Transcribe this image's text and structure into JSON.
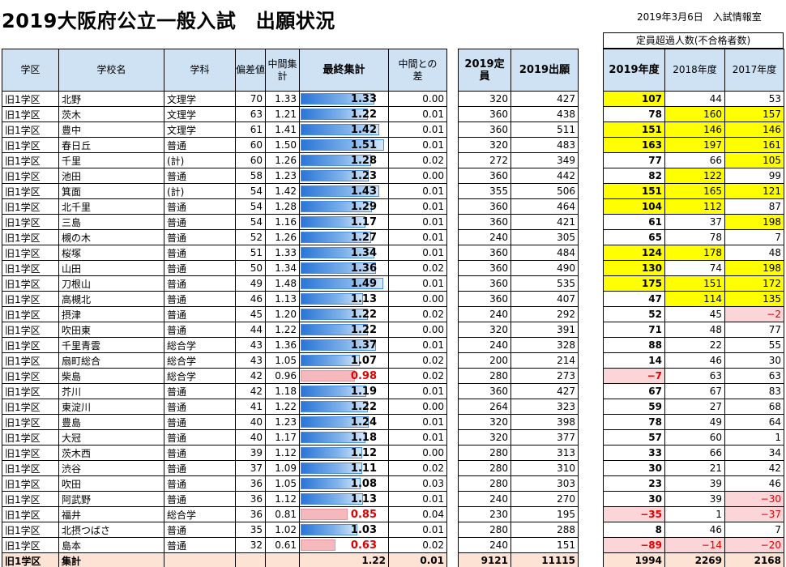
{
  "title": "2019大阪府公立一般入試　出願状況",
  "info": "2019年3月6日　入試情報室",
  "excess_header": "定員超過人数(不合格者数)",
  "headers": {
    "district": "学区",
    "school": "学校名",
    "course": "学科",
    "hensa": "偏差値",
    "interim": "中間集計",
    "final": "最終集計",
    "diff": "中間との差",
    "capacity": "2019定員",
    "applicants": "2019出願",
    "y2019": "2019年度",
    "y2018": "2018年度",
    "y2017": "2017年度"
  },
  "rows": [
    {
      "district": "旧1学区",
      "school": "北野",
      "course": "文理学",
      "hensa": "70",
      "interim": "1.33",
      "final": "1.33",
      "final_value": 1.33,
      "diff": "0.00",
      "capacity": "320",
      "applicants": "427",
      "y2019": "107",
      "y2018": "44",
      "y2017": "53"
    },
    {
      "district": "旧1学区",
      "school": "茨木",
      "course": "文理学",
      "hensa": "63",
      "interim": "1.21",
      "final": "1.22",
      "final_value": 1.22,
      "diff": "0.01",
      "capacity": "360",
      "applicants": "438",
      "y2019": "78",
      "y2018": "160",
      "y2017": "157"
    },
    {
      "district": "旧1学区",
      "school": "豊中",
      "course": "文理学",
      "hensa": "61",
      "interim": "1.41",
      "final": "1.42",
      "final_value": 1.42,
      "diff": "0.01",
      "capacity": "360",
      "applicants": "511",
      "y2019": "151",
      "y2018": "146",
      "y2017": "146"
    },
    {
      "district": "旧1学区",
      "school": "春日丘",
      "course": "普通",
      "hensa": "60",
      "interim": "1.50",
      "final": "1.51",
      "final_value": 1.51,
      "diff": "0.01",
      "capacity": "320",
      "applicants": "483",
      "y2019": "163",
      "y2018": "197",
      "y2017": "161"
    },
    {
      "district": "旧1学区",
      "school": "千里",
      "course": "(計)",
      "hensa": "60",
      "interim": "1.26",
      "final": "1.28",
      "final_value": 1.28,
      "diff": "0.02",
      "capacity": "272",
      "applicants": "349",
      "y2019": "77",
      "y2018": "66",
      "y2017": "105"
    },
    {
      "district": "旧1学区",
      "school": "池田",
      "course": "普通",
      "hensa": "58",
      "interim": "1.23",
      "final": "1.23",
      "final_value": 1.23,
      "diff": "0.00",
      "capacity": "360",
      "applicants": "442",
      "y2019": "82",
      "y2018": "122",
      "y2017": "99"
    },
    {
      "district": "旧1学区",
      "school": "箕面",
      "course": "(計)",
      "hensa": "54",
      "interim": "1.42",
      "final": "1.43",
      "final_value": 1.43,
      "diff": "0.01",
      "capacity": "355",
      "applicants": "506",
      "y2019": "151",
      "y2018": "165",
      "y2017": "121"
    },
    {
      "district": "旧1学区",
      "school": "北千里",
      "course": "普通",
      "hensa": "54",
      "interim": "1.28",
      "final": "1.29",
      "final_value": 1.29,
      "diff": "0.01",
      "capacity": "360",
      "applicants": "464",
      "y2019": "104",
      "y2018": "112",
      "y2017": "87"
    },
    {
      "district": "旧1学区",
      "school": "三島",
      "course": "普通",
      "hensa": "54",
      "interim": "1.16",
      "final": "1.17",
      "final_value": 1.17,
      "diff": "0.01",
      "capacity": "360",
      "applicants": "421",
      "y2019": "61",
      "y2018": "37",
      "y2017": "198"
    },
    {
      "district": "旧1学区",
      "school": "槻の木",
      "course": "普通",
      "hensa": "52",
      "interim": "1.26",
      "final": "1.27",
      "final_value": 1.27,
      "diff": "0.01",
      "capacity": "240",
      "applicants": "305",
      "y2019": "65",
      "y2018": "78",
      "y2017": "7"
    },
    {
      "district": "旧1学区",
      "school": "桜塚",
      "course": "普通",
      "hensa": "51",
      "interim": "1.33",
      "final": "1.34",
      "final_value": 1.34,
      "diff": "0.01",
      "capacity": "360",
      "applicants": "484",
      "y2019": "124",
      "y2018": "178",
      "y2017": "48"
    },
    {
      "district": "旧1学区",
      "school": "山田",
      "course": "普通",
      "hensa": "50",
      "interim": "1.34",
      "final": "1.36",
      "final_value": 1.36,
      "diff": "0.02",
      "capacity": "360",
      "applicants": "490",
      "y2019": "130",
      "y2018": "74",
      "y2017": "198"
    },
    {
      "district": "旧1学区",
      "school": "刀根山",
      "course": "普通",
      "hensa": "49",
      "interim": "1.48",
      "final": "1.49",
      "final_value": 1.49,
      "diff": "0.01",
      "capacity": "360",
      "applicants": "535",
      "y2019": "175",
      "y2018": "151",
      "y2017": "172"
    },
    {
      "district": "旧1学区",
      "school": "高槻北",
      "course": "普通",
      "hensa": "46",
      "interim": "1.13",
      "final": "1.13",
      "final_value": 1.13,
      "diff": "0.00",
      "capacity": "360",
      "applicants": "407",
      "y2019": "47",
      "y2018": "114",
      "y2017": "135"
    },
    {
      "district": "旧1学区",
      "school": "摂津",
      "course": "普通",
      "hensa": "45",
      "interim": "1.20",
      "final": "1.22",
      "final_value": 1.22,
      "diff": "0.02",
      "capacity": "240",
      "applicants": "292",
      "y2019": "52",
      "y2018": "45",
      "y2017": "−2"
    },
    {
      "district": "旧1学区",
      "school": "吹田東",
      "course": "普通",
      "hensa": "44",
      "interim": "1.22",
      "final": "1.22",
      "final_value": 1.22,
      "diff": "0.00",
      "capacity": "320",
      "applicants": "391",
      "y2019": "71",
      "y2018": "48",
      "y2017": "77"
    },
    {
      "district": "旧1学区",
      "school": "千里青雲",
      "course": "総合学",
      "hensa": "43",
      "interim": "1.36",
      "final": "1.37",
      "final_value": 1.37,
      "diff": "0.01",
      "capacity": "240",
      "applicants": "328",
      "y2019": "88",
      "y2018": "22",
      "y2017": "55"
    },
    {
      "district": "旧1学区",
      "school": "扇町総合",
      "course": "総合学",
      "hensa": "43",
      "interim": "1.05",
      "final": "1.07",
      "final_value": 1.07,
      "diff": "0.02",
      "capacity": "200",
      "applicants": "214",
      "y2019": "14",
      "y2018": "46",
      "y2017": "30"
    },
    {
      "district": "旧1学区",
      "school": "柴島",
      "course": "総合学",
      "hensa": "42",
      "interim": "0.96",
      "final": "0.98",
      "final_value": 0.98,
      "diff": "0.02",
      "capacity": "280",
      "applicants": "273",
      "y2019": "−7",
      "y2018": "63",
      "y2017": "63"
    },
    {
      "district": "旧1学区",
      "school": "芥川",
      "course": "普通",
      "hensa": "42",
      "interim": "1.18",
      "final": "1.19",
      "final_value": 1.19,
      "diff": "0.01",
      "capacity": "360",
      "applicants": "427",
      "y2019": "67",
      "y2018": "67",
      "y2017": "83"
    },
    {
      "district": "旧1学区",
      "school": "東淀川",
      "course": "普通",
      "hensa": "41",
      "interim": "1.22",
      "final": "1.22",
      "final_value": 1.22,
      "diff": "0.00",
      "capacity": "264",
      "applicants": "323",
      "y2019": "59",
      "y2018": "27",
      "y2017": "68"
    },
    {
      "district": "旧1学区",
      "school": "豊島",
      "course": "普通",
      "hensa": "40",
      "interim": "1.23",
      "final": "1.24",
      "final_value": 1.24,
      "diff": "0.01",
      "capacity": "320",
      "applicants": "398",
      "y2019": "78",
      "y2018": "49",
      "y2017": "64"
    },
    {
      "district": "旧1学区",
      "school": "大冠",
      "course": "普通",
      "hensa": "40",
      "interim": "1.17",
      "final": "1.18",
      "final_value": 1.18,
      "diff": "0.01",
      "capacity": "320",
      "applicants": "377",
      "y2019": "57",
      "y2018": "60",
      "y2017": "1"
    },
    {
      "district": "旧1学区",
      "school": "茨木西",
      "course": "普通",
      "hensa": "39",
      "interim": "1.12",
      "final": "1.12",
      "final_value": 1.12,
      "diff": "0.00",
      "capacity": "280",
      "applicants": "313",
      "y2019": "33",
      "y2018": "66",
      "y2017": "34"
    },
    {
      "district": "旧1学区",
      "school": "渋谷",
      "course": "普通",
      "hensa": "37",
      "interim": "1.09",
      "final": "1.11",
      "final_value": 1.11,
      "diff": "0.02",
      "capacity": "280",
      "applicants": "310",
      "y2019": "30",
      "y2018": "21",
      "y2017": "42"
    },
    {
      "district": "旧1学区",
      "school": "吹田",
      "course": "普通",
      "hensa": "36",
      "interim": "1.05",
      "final": "1.08",
      "final_value": 1.08,
      "diff": "0.03",
      "capacity": "280",
      "applicants": "303",
      "y2019": "23",
      "y2018": "39",
      "y2017": "46"
    },
    {
      "district": "旧1学区",
      "school": "阿武野",
      "course": "普通",
      "hensa": "36",
      "interim": "1.12",
      "final": "1.13",
      "final_value": 1.13,
      "diff": "0.01",
      "capacity": "240",
      "applicants": "270",
      "y2019": "30",
      "y2018": "39",
      "y2017": "−30"
    },
    {
      "district": "旧1学区",
      "school": "福井",
      "course": "総合学",
      "hensa": "36",
      "interim": "0.81",
      "final": "0.85",
      "final_value": 0.85,
      "diff": "0.04",
      "capacity": "230",
      "applicants": "195",
      "y2019": "−35",
      "y2018": "1",
      "y2017": "−37"
    },
    {
      "district": "旧1学区",
      "school": "北摂つばさ",
      "course": "普通",
      "hensa": "35",
      "interim": "1.02",
      "final": "1.03",
      "final_value": 1.03,
      "diff": "0.01",
      "capacity": "280",
      "applicants": "288",
      "y2019": "8",
      "y2018": "46",
      "y2017": "7"
    },
    {
      "district": "旧1学区",
      "school": "島本",
      "course": "普通",
      "hensa": "32",
      "interim": "0.61",
      "final": "0.63",
      "final_value": 0.63,
      "diff": "0.02",
      "capacity": "240",
      "applicants": "151",
      "y2019": "−89",
      "y2018": "−14",
      "y2017": "−20"
    }
  ],
  "total": {
    "district": "旧1学区",
    "label": "集計",
    "final": "1.22",
    "diff": "0.01",
    "capacity": "9121",
    "applicants": "11115",
    "y2019": "1994",
    "y2018": "2269",
    "y2017": "2168"
  },
  "colors": {
    "header_bg": "#cfe2f3",
    "highlight_yellow": "#ffff00",
    "highlight_pink": "#fcd5d8",
    "negative_text": "#e00000",
    "bar_blue": "#2a75d6",
    "total_bg": "#fde3d3"
  }
}
